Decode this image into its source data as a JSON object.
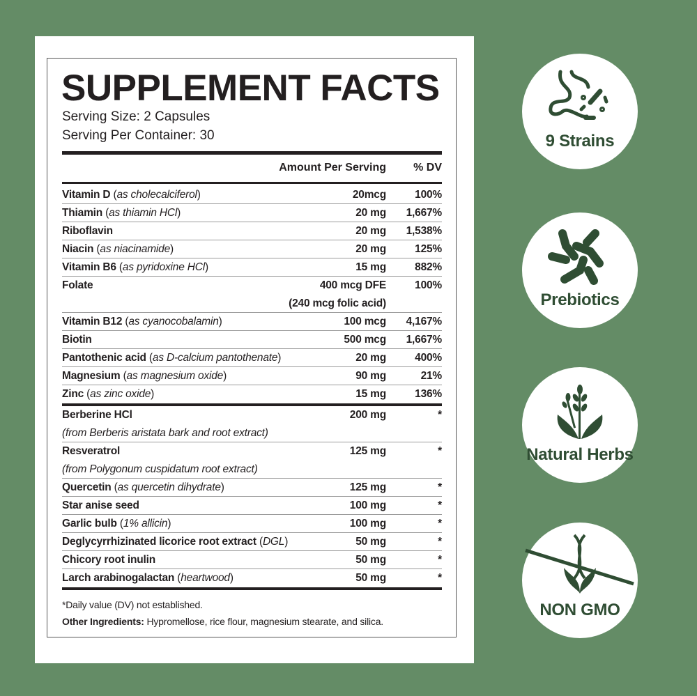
{
  "label": {
    "title": "SUPPLEMENT FACTS",
    "serving_size": "Serving Size: 2 Capsules",
    "servings_per_container": "Serving Per Container: 30",
    "col_amount": "Amount Per Serving",
    "col_dv": "% DV",
    "vitamins": [
      {
        "name": "Vitamin D",
        "note": "as cholecalciferol",
        "amount": "20mcg",
        "dv": "100%"
      },
      {
        "name": "Thiamin",
        "note": "as thiamin HCl",
        "amount": "20 mg",
        "dv": "1,667%"
      },
      {
        "name": "Riboflavin",
        "note": "",
        "amount": "20 mg",
        "dv": "1,538%"
      },
      {
        "name": "Niacin",
        "note": "as niacinamide",
        "amount": "20 mg",
        "dv": "125%"
      },
      {
        "name": "Vitamin B6",
        "note": "as pyridoxine HCl",
        "amount": "15 mg",
        "dv": "882%"
      },
      {
        "name": "Folate",
        "note": "",
        "amount": "400 mcg DFE",
        "amount2": "(240 mcg folic acid)",
        "dv": "100%"
      },
      {
        "name": "Vitamin B12",
        "note": "as cyanocobalamin",
        "amount": "100 mcg",
        "dv": "4,167%"
      },
      {
        "name": "Biotin",
        "note": "",
        "amount": "500 mcg",
        "dv": "1,667%"
      },
      {
        "name": "Pantothenic acid",
        "note": "as D-calcium pantothenate",
        "amount": "20 mg",
        "dv": "400%"
      },
      {
        "name": "Magnesium",
        "note": "as magnesium oxide",
        "amount": "90 mg",
        "dv": "21%"
      },
      {
        "name": "Zinc",
        "note": "as zinc oxide",
        "amount": "15 mg",
        "dv": "136%"
      }
    ],
    "others": [
      {
        "name": "Berberine HCl",
        "note": "",
        "sub": "(from Berberis aristata bark and root extract)",
        "amount": "200 mg",
        "dv": "*"
      },
      {
        "name": "Resveratrol",
        "note": "",
        "sub": "(from Polygonum cuspidatum root extract)",
        "amount": "125 mg",
        "dv": "*"
      },
      {
        "name": "Quercetin",
        "note": "as quercetin dihydrate",
        "amount": "125 mg",
        "dv": "*"
      },
      {
        "name": "Star anise seed",
        "note": "",
        "amount": "100 mg",
        "dv": "*"
      },
      {
        "name": "Garlic bulb",
        "note": "1% allicin",
        "amount": "100 mg",
        "dv": "*"
      },
      {
        "name": "Deglycyrrhizinated licorice root extract",
        "note": "DGL",
        "amount": "50 mg",
        "dv": "*"
      },
      {
        "name": "Chicory root inulin",
        "note": "",
        "amount": "50 mg",
        "dv": "*"
      },
      {
        "name": "Larch arabinogalactan",
        "note": "heartwood",
        "amount": "50 mg",
        "dv": "*"
      }
    ],
    "footnote": "*Daily value (DV) not established.",
    "other_ingredients_label": "Other Ingredients:",
    "other_ingredients": " Hypromellose, rice flour, magnesium stearate, and silica."
  },
  "badges": [
    {
      "label": "9 Strains",
      "icon": "stomach-bacteria-icon"
    },
    {
      "label": "Prebiotics",
      "icon": "molecules-icon"
    },
    {
      "label": "Natural Herbs",
      "icon": "herb-leaves-icon"
    },
    {
      "label": "NON GMO",
      "icon": "dna-leaf-icon"
    }
  ],
  "colors": {
    "background": "#648c66",
    "icon_green": "#2f4d33",
    "text": "#231f20"
  }
}
